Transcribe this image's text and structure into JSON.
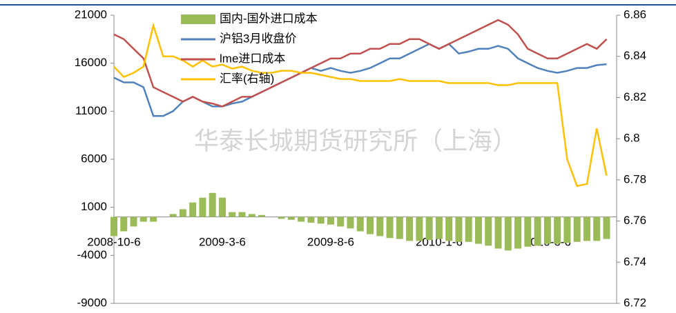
{
  "chart_data": {
    "type": "combo",
    "watermark": "华泰长城期货研究所（上海）",
    "categories": [
      "2008-10-6",
      null,
      null,
      null,
      null,
      null,
      null,
      null,
      null,
      null,
      null,
      "2009-3-6",
      null,
      null,
      null,
      null,
      null,
      null,
      null,
      null,
      null,
      null,
      "2009-8-6",
      null,
      null,
      null,
      null,
      null,
      null,
      null,
      null,
      null,
      null,
      "2010-1-6",
      null,
      null,
      null,
      null,
      null,
      null,
      null,
      null,
      null,
      null,
      "2010-6-6",
      null,
      null,
      null,
      null,
      null,
      null
    ],
    "ylim": [
      -9000,
      21000
    ],
    "yticks": [
      -9000,
      -4000,
      1000,
      6000,
      11000,
      16000,
      21000
    ],
    "y2lim": [
      6.72,
      6.86
    ],
    "y2ticks": [
      6.72,
      6.74,
      6.76,
      6.78,
      6.8,
      6.82,
      6.84,
      6.86
    ],
    "legend": "top-left",
    "series": [
      {
        "name": "国内-国外进口成本",
        "type": "bar",
        "color": "#9bbb59",
        "values": [
          -2000,
          -1500,
          -1000,
          -500,
          -500,
          0,
          300,
          800,
          1500,
          2000,
          2500,
          2000,
          500,
          500,
          300,
          200,
          0,
          -200,
          -300,
          -500,
          -600,
          -700,
          -800,
          -1000,
          -1200,
          -1500,
          -1800,
          -2000,
          -2200,
          -2300,
          -2500,
          -2500,
          -2400,
          -2300,
          -2500,
          -2600,
          -2600,
          -2800,
          -3000,
          -3300,
          -3500,
          -3300,
          -3100,
          -3000,
          -2800,
          -2800,
          -2700,
          -2600,
          -2500,
          -2500,
          -2300
        ]
      },
      {
        "name": "沪铝3月收盘价",
        "type": "line",
        "color": "#4f81bd",
        "values": [
          14500,
          14000,
          14000,
          13500,
          10500,
          10500,
          11000,
          12000,
          12500,
          12000,
          11500,
          11500,
          11800,
          12000,
          12500,
          13000,
          13500,
          14000,
          14500,
          15000,
          15500,
          15200,
          15500,
          15200,
          15000,
          15200,
          15500,
          16000,
          16500,
          16500,
          17000,
          17500,
          18000,
          17500,
          18000,
          17000,
          17200,
          17500,
          17500,
          17800,
          17500,
          16500,
          16000,
          15500,
          15200,
          15000,
          15200,
          15500,
          15500,
          15800,
          15900
        ]
      },
      {
        "name": "lme进口成本",
        "type": "line",
        "color": "#c0504d",
        "values": [
          19000,
          18500,
          17500,
          16500,
          13500,
          13000,
          12500,
          12000,
          12500,
          12000,
          11800,
          11500,
          12000,
          12500,
          12500,
          13000,
          13500,
          14000,
          14500,
          15000,
          15500,
          16000,
          16500,
          16500,
          17000,
          17000,
          17500,
          17500,
          18000,
          18000,
          18500,
          18500,
          18000,
          17500,
          18000,
          18500,
          19000,
          19500,
          20000,
          20500,
          20000,
          19000,
          17500,
          17000,
          16500,
          16500,
          17000,
          17500,
          18000,
          17500,
          18500
        ]
      },
      {
        "name": "汇率(右轴)",
        "type": "line",
        "axis": "y2",
        "color": "#ffc000",
        "values": [
          6.835,
          6.83,
          6.832,
          6.835,
          6.855,
          6.84,
          6.84,
          6.838,
          6.835,
          6.838,
          6.835,
          6.836,
          6.834,
          6.835,
          6.833,
          6.832,
          6.832,
          6.833,
          6.833,
          6.832,
          6.832,
          6.831,
          6.83,
          6.829,
          6.829,
          6.828,
          6.828,
          6.828,
          6.828,
          6.829,
          6.828,
          6.828,
          6.828,
          6.828,
          6.827,
          6.827,
          6.827,
          6.827,
          6.827,
          6.826,
          6.826,
          6.827,
          6.827,
          6.827,
          6.827,
          6.827,
          6.79,
          6.777,
          6.778,
          6.805,
          6.782
        ]
      }
    ]
  }
}
